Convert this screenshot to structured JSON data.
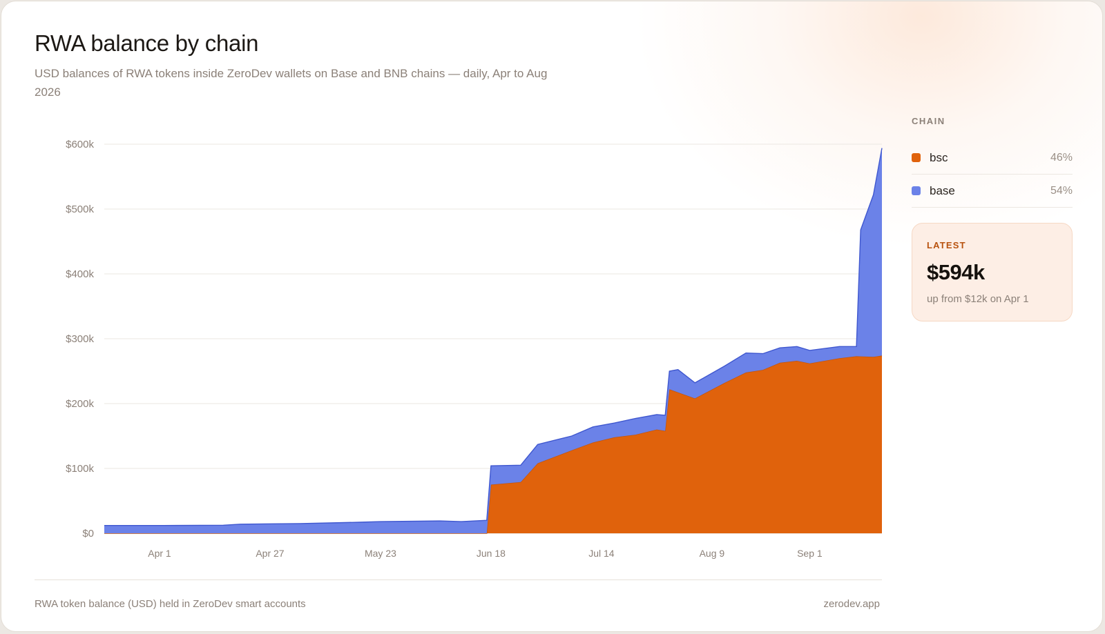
{
  "title": "RWA balance by chain",
  "subtitle": "USD balances of RWA tokens inside ZeroDev wallets on Base and BNB chains — daily, Apr to Aug 2026",
  "legend": {
    "title": "CHAIN",
    "items": [
      {
        "name": "bsc",
        "pct": "46%",
        "color": "#e0620c"
      },
      {
        "name": "base",
        "pct": "54%",
        "color": "#6b82e8"
      }
    ]
  },
  "latest": {
    "label": "LATEST",
    "value": "$594k",
    "note": "up from $12k on Apr 1"
  },
  "footer": {
    "caption": "RWA token balance (USD) held in ZeroDev smart accounts",
    "source": "zerodev.app"
  },
  "chart_data": {
    "type": "area",
    "stacked": true,
    "x_start": "2026-03-19",
    "x_ticks": [
      "Apr 1",
      "Apr 27",
      "May 23",
      "Jun 18",
      "Jul 14",
      "Aug 9",
      "Sep 1"
    ],
    "y_ticks": [
      "$0",
      "$100k",
      "$200k",
      "$300k",
      "$400k",
      "$500k",
      "$600k"
    ],
    "ylim": [
      0,
      600000
    ],
    "grid": true,
    "legend_position": "right",
    "series": [
      {
        "name": "bsc",
        "color": "#e0620c",
        "points": [
          [
            "2026-03-19",
            0
          ],
          [
            "2026-06-17",
            0
          ],
          [
            "2026-06-18",
            75000
          ],
          [
            "2026-06-25",
            79000
          ],
          [
            "2026-06-29",
            108000
          ],
          [
            "2026-07-07",
            128000
          ],
          [
            "2026-07-12",
            140000
          ],
          [
            "2026-07-17",
            148000
          ],
          [
            "2026-07-22",
            152000
          ],
          [
            "2026-07-27",
            160000
          ],
          [
            "2026-07-29",
            158000
          ],
          [
            "2026-07-30",
            222000
          ],
          [
            "2026-08-05",
            208000
          ],
          [
            "2026-08-12",
            232000
          ],
          [
            "2026-08-17",
            248000
          ],
          [
            "2026-08-21",
            252000
          ],
          [
            "2026-08-25",
            263000
          ],
          [
            "2026-08-29",
            266000
          ],
          [
            "2026-09-01",
            262000
          ],
          [
            "2026-09-08",
            270000
          ],
          [
            "2026-09-12",
            273000
          ],
          [
            "2026-09-16",
            272000
          ],
          [
            "2026-09-18",
            274000
          ]
        ]
      },
      {
        "name": "base",
        "color": "#6b82e8",
        "points": [
          [
            "2026-03-19",
            12000
          ],
          [
            "2026-04-02",
            12000
          ],
          [
            "2026-04-16",
            12500
          ],
          [
            "2026-04-20",
            14000
          ],
          [
            "2026-05-04",
            15000
          ],
          [
            "2026-05-18",
            17000
          ],
          [
            "2026-05-23",
            18000
          ],
          [
            "2026-06-06",
            19000
          ],
          [
            "2026-06-11",
            18000
          ],
          [
            "2026-06-17",
            20000
          ],
          [
            "2026-06-18",
            29000
          ],
          [
            "2026-06-25",
            26000
          ],
          [
            "2026-06-29",
            29000
          ],
          [
            "2026-07-07",
            22000
          ],
          [
            "2026-07-12",
            24000
          ],
          [
            "2026-07-17",
            22000
          ],
          [
            "2026-07-22",
            25000
          ],
          [
            "2026-07-27",
            23000
          ],
          [
            "2026-07-29",
            24000
          ],
          [
            "2026-07-30",
            28000
          ],
          [
            "2026-08-01",
            35000
          ],
          [
            "2026-08-05",
            24000
          ],
          [
            "2026-08-12",
            26000
          ],
          [
            "2026-08-17",
            30000
          ],
          [
            "2026-08-21",
            25000
          ],
          [
            "2026-08-25",
            23000
          ],
          [
            "2026-08-29",
            22000
          ],
          [
            "2026-09-01",
            20000
          ],
          [
            "2026-09-08",
            18000
          ],
          [
            "2026-09-12",
            15000
          ],
          [
            "2026-09-13",
            195000
          ],
          [
            "2026-09-16",
            250000
          ],
          [
            "2026-09-18",
            320000
          ]
        ]
      }
    ]
  }
}
